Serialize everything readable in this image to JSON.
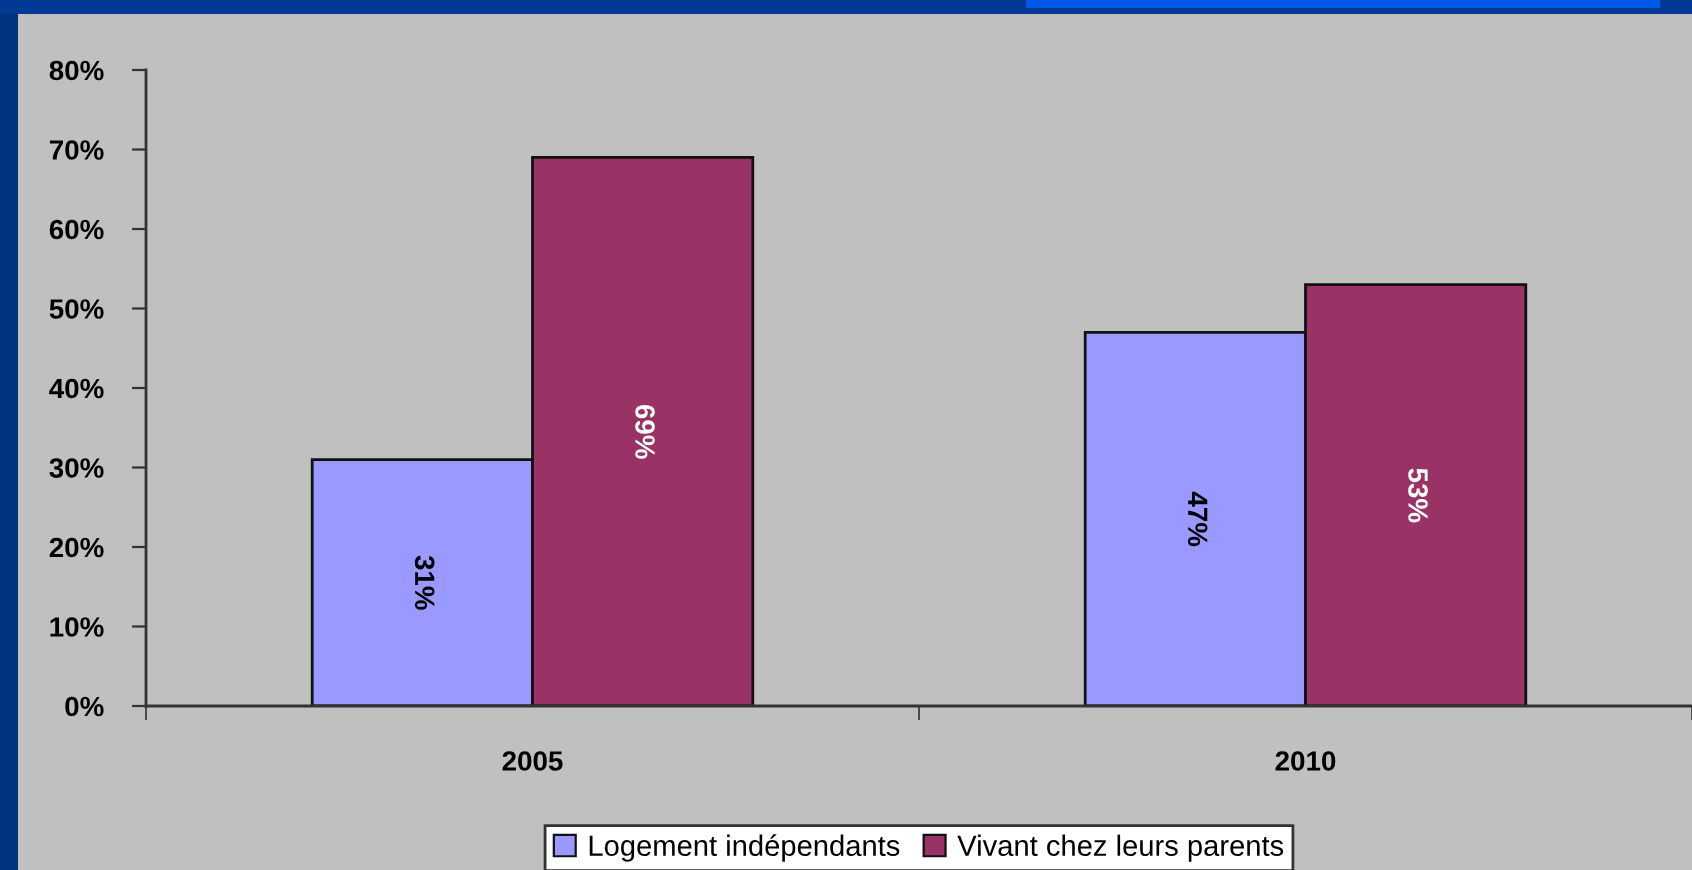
{
  "chart_data": {
    "type": "bar",
    "categories": [
      "2005",
      "2010"
    ],
    "series": [
      {
        "name": "Logement indépendants",
        "color": "#9999ff",
        "values": [
          31,
          47
        ],
        "value_labels": [
          "31%",
          "47%"
        ]
      },
      {
        "name": "Vivant chez leurs parents",
        "color": "#993366",
        "values": [
          69,
          53
        ],
        "value_labels": [
          "69%",
          "53%"
        ]
      }
    ],
    "ylim": [
      0,
      80
    ],
    "yticks": [
      {
        "value": 0,
        "label": "0%"
      },
      {
        "value": 10,
        "label": "10%"
      },
      {
        "value": 20,
        "label": "20%"
      },
      {
        "value": 30,
        "label": "30%"
      },
      {
        "value": 40,
        "label": "40%"
      },
      {
        "value": 50,
        "label": "50%"
      },
      {
        "value": 60,
        "label": "60%"
      },
      {
        "value": 70,
        "label": "70%"
      },
      {
        "value": 80,
        "label": "80%"
      }
    ],
    "legend": "bottom"
  }
}
